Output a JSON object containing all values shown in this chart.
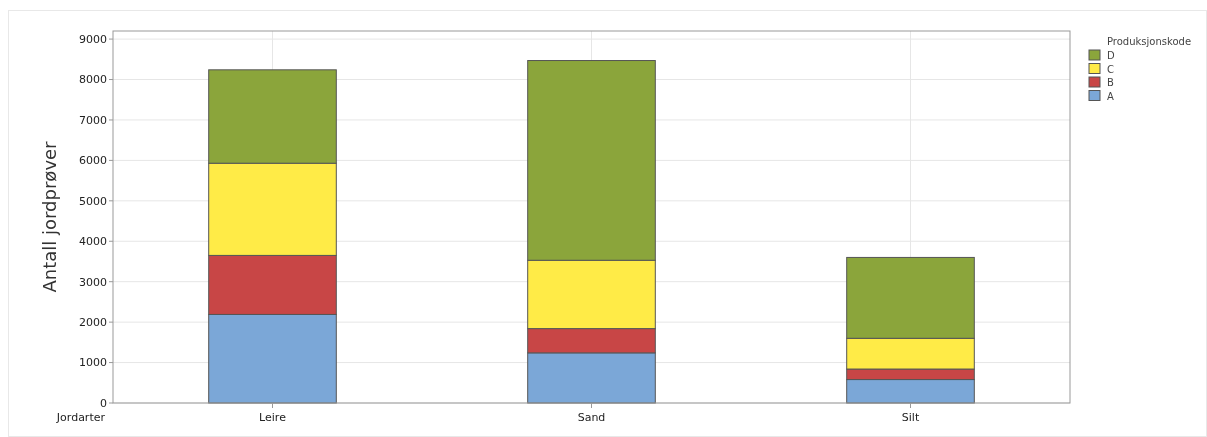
{
  "chart_data": {
    "type": "bar",
    "xlabel": "Jordarter",
    "ylabel": "Antall jordprøver",
    "legend_title": "Produksjonskode",
    "categories": [
      "Leire",
      "Sand",
      "Silt"
    ],
    "stacked": true,
    "series": [
      {
        "name": "A",
        "color": "#7ba7d7",
        "values": [
          2190,
          1240,
          580
        ]
      },
      {
        "name": "B",
        "color": "#c84646",
        "values": [
          1460,
          600,
          260
        ]
      },
      {
        "name": "C",
        "color": "#ffeb47",
        "values": [
          2280,
          1690,
          760
        ]
      },
      {
        "name": "D",
        "color": "#8ba53b",
        "values": [
          2310,
          4940,
          2000
        ]
      }
    ],
    "ylim": [
      0,
      9200
    ],
    "yticks": [
      0,
      1000,
      2000,
      3000,
      4000,
      5000,
      6000,
      7000,
      8000,
      9000
    ],
    "grid": true,
    "legend": "top right"
  }
}
